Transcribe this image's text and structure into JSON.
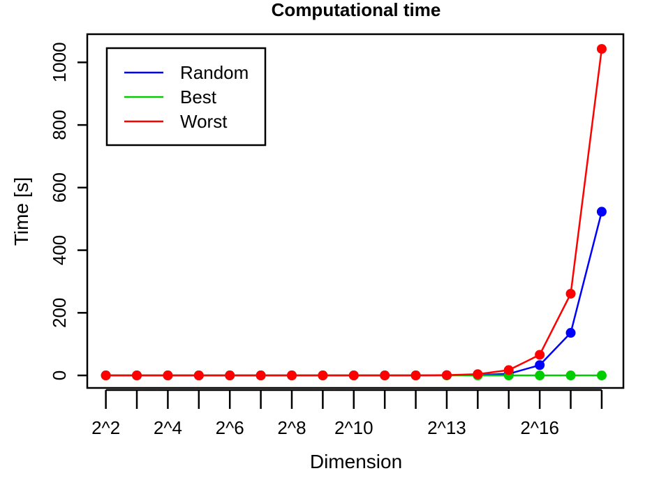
{
  "chart_data": {
    "type": "line",
    "title": "Computational time",
    "xlabel": "Dimension",
    "ylabel": "Time [s]",
    "x": [
      2,
      3,
      4,
      5,
      6,
      7,
      8,
      9,
      10,
      11,
      12,
      13,
      14,
      15,
      16,
      17,
      18
    ],
    "x_tick_labels": [
      {
        "x": 2,
        "label": "2^2"
      },
      {
        "x": 4,
        "label": "2^4"
      },
      {
        "x": 6,
        "label": "2^6"
      },
      {
        "x": 8,
        "label": "2^8"
      },
      {
        "x": 10,
        "label": "2^10"
      },
      {
        "x": 13,
        "label": "2^13"
      },
      {
        "x": 16,
        "label": "2^16"
      }
    ],
    "xlim": [
      1.4,
      18.7
    ],
    "ylim": [
      -40,
      1090
    ],
    "y_ticks": [
      0,
      200,
      400,
      600,
      800,
      1000
    ],
    "y_tick_labels": [
      "0",
      "200",
      "400",
      "600",
      "800",
      "1000"
    ],
    "legend_position": "top-left",
    "grid": false,
    "series": [
      {
        "name": "Random",
        "color": "#0000ff",
        "values": [
          0,
          0,
          0,
          0,
          0,
          0,
          0,
          0,
          0,
          0,
          0,
          0.5,
          1.5,
          5,
          33,
          136,
          523
        ]
      },
      {
        "name": "Best",
        "color": "#00cd00",
        "values": [
          0,
          0,
          0,
          0,
          0,
          0,
          0,
          0,
          0,
          0,
          0,
          0,
          0,
          0,
          0,
          0,
          0
        ]
      },
      {
        "name": "Worst",
        "color": "#ff0000",
        "values": [
          0,
          0,
          0,
          0,
          0,
          0,
          0,
          0,
          0,
          0,
          0,
          1,
          4,
          17,
          66,
          261,
          1043
        ]
      }
    ]
  }
}
